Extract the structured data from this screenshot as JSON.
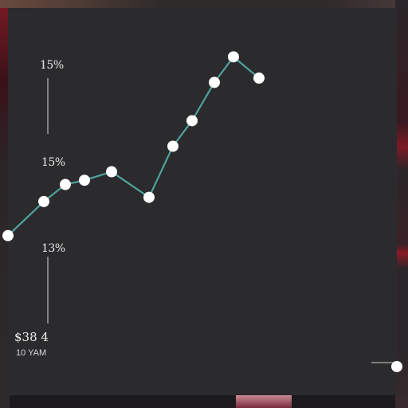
{
  "chart_data": {
    "type": "line",
    "title": "",
    "xlabel": "",
    "ylabel": "",
    "y_tick_labels": [
      "15%",
      "15%",
      "13%"
    ],
    "x": [
      1,
      2,
      3,
      4,
      5,
      6,
      7,
      8,
      9,
      10,
      11,
      12
    ],
    "series": [
      {
        "values": [
          34,
          42,
          46,
          47,
          49,
          43,
          55,
          61,
          70,
          76,
          71,
          null
        ]
      }
    ],
    "line_color": "#4fa39a",
    "marker_color": "#ffffff",
    "grid": false,
    "legend": "none"
  },
  "readout": {
    "value": "$38 4",
    "sub": "10 YAM"
  }
}
